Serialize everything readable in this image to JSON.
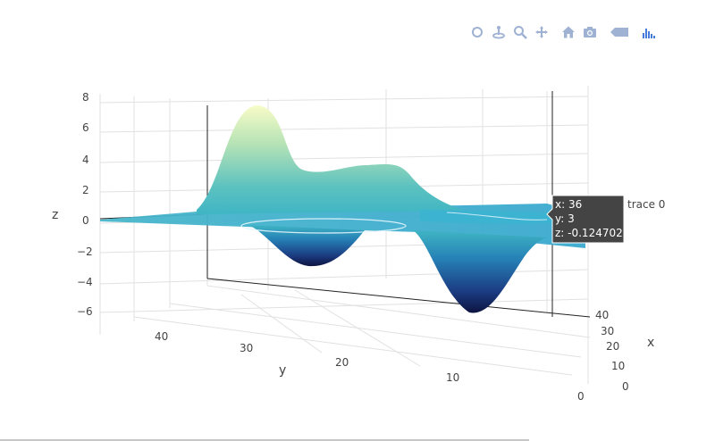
{
  "toolbar": {
    "buttons": [
      {
        "name": "orbital-rotation-icon"
      },
      {
        "name": "turntable-rotation-icon"
      },
      {
        "name": "zoom-icon"
      },
      {
        "name": "pan-icon"
      },
      {
        "name": "home-icon"
      },
      {
        "name": "camera-icon"
      },
      {
        "name": "toggle-spike-lines-icon"
      },
      {
        "name": "plotly-logo-icon"
      }
    ],
    "accent": "#447adb",
    "icon_color": "#9fb2d3"
  },
  "chart_data": {
    "type": "surface",
    "colorscale": "YlGnBu",
    "colors": {
      "high": "#f7fcc7",
      "mid_high": "#8fd2bb",
      "mid": "#3fb5c4",
      "mid_low": "#2c83b8",
      "low": "#1b2b6d",
      "deep": "#0d1440"
    },
    "x": {
      "label": "x",
      "ticks": [
        "0",
        "10",
        "20",
        "30",
        "40"
      ],
      "range": [
        0,
        40
      ]
    },
    "y": {
      "label": "y",
      "ticks": [
        "10",
        "20",
        "30",
        "40"
      ],
      "range": [
        0,
        48
      ]
    },
    "z": {
      "label": "z",
      "ticks": [
        "−6",
        "−4",
        "−2",
        "0",
        "2",
        "4",
        "6",
        "8"
      ],
      "range": [
        -6.5,
        8.5
      ]
    },
    "peaks": [
      {
        "x": 20,
        "y": 35,
        "z": 8.0
      },
      {
        "x": 25,
        "y": 25,
        "z": 3.5
      },
      {
        "x": 30,
        "y": 20,
        "z": 3.3
      }
    ],
    "troughs": [
      {
        "x": 10,
        "y": 30,
        "z": -3.0
      },
      {
        "x": 15,
        "y": 10,
        "z": -5.8
      }
    ],
    "grid": true,
    "hover": {
      "x": "x: 36",
      "y": "y: 3",
      "z": "z: -0.1247021",
      "trace": "trace 0"
    }
  }
}
